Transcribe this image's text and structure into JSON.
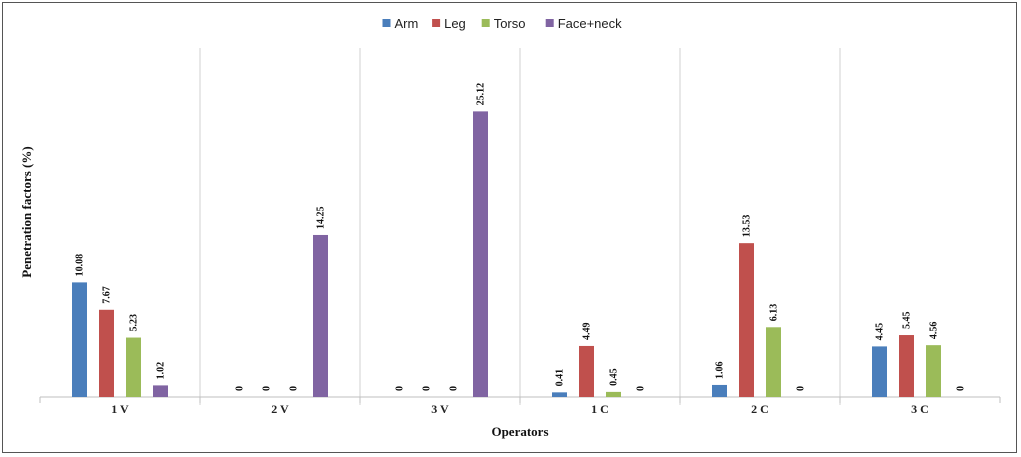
{
  "chart_data": {
    "type": "bar",
    "title": "",
    "xlabel": "Operators",
    "ylabel": "Penetration factors (%)",
    "categories": [
      "1 V",
      "2 V",
      "3 V",
      "1 C",
      "2 C",
      "3 C"
    ],
    "ylim": [
      0,
      27
    ],
    "grid": false,
    "legend_position": "top-center",
    "series": [
      {
        "name": "Arm",
        "color": "#4a7ebb",
        "values": [
          10.08,
          0,
          0,
          0.41,
          1.06,
          4.45
        ]
      },
      {
        "name": "Leg",
        "color": "#c0504d",
        "values": [
          7.67,
          0,
          0,
          4.49,
          13.53,
          5.45
        ]
      },
      {
        "name": "Torso",
        "color": "#9bbb59",
        "values": [
          5.23,
          0,
          0,
          0.45,
          6.13,
          4.56
        ]
      },
      {
        "name": "Face+neck",
        "color": "#8064a2",
        "values": [
          1.02,
          14.25,
          25.12,
          0,
          0,
          0
        ]
      }
    ],
    "value_labels": [
      [
        "10.08",
        "0",
        "0",
        "0.41",
        "1.06",
        "4.45"
      ],
      [
        "7.67",
        "0",
        "0",
        "4.49",
        "13.53",
        "5.45"
      ],
      [
        "5.23",
        "0",
        "0",
        "0.45",
        "6.13",
        "4.56"
      ],
      [
        "1.02",
        "14.25",
        "25.12",
        "0",
        "0",
        "0"
      ]
    ]
  }
}
